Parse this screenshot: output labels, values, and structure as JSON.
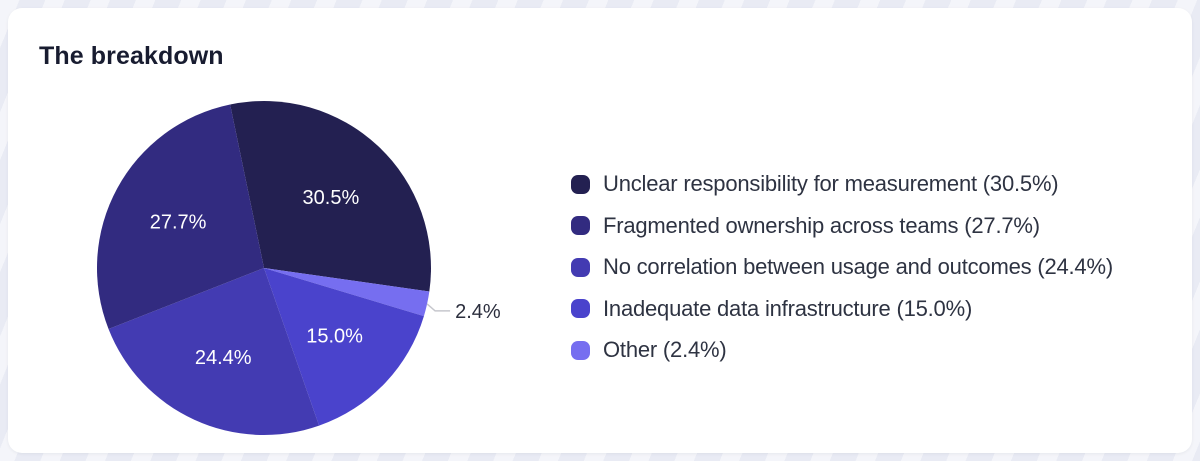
{
  "header": {
    "title": "The breakdown"
  },
  "colors": {
    "page_background": "#e9ebf4",
    "card_background": "#ffffff",
    "title_text": "#181c30",
    "legend_text": "#2e3342"
  },
  "chart_data": {
    "type": "pie",
    "title": "The breakdown",
    "values_unit": "percent",
    "segments": [
      {
        "label": "Unclear responsibility for measurement",
        "value": 30.5,
        "display": "30.5%",
        "color": "#232051"
      },
      {
        "label": "Fragmented ownership across teams",
        "value": 27.7,
        "display": "27.7%",
        "color": "#322b80"
      },
      {
        "label": "No correlation between usage and outcomes",
        "value": 24.4,
        "display": "24.4%",
        "color": "#433bb2"
      },
      {
        "label": "Inadequate data infrastructure",
        "value": 15.0,
        "display": "15.0%",
        "color": "#4a43cc"
      },
      {
        "label": "Other",
        "value": 2.4,
        "display": "2.4%",
        "color": "#766ef0"
      }
    ],
    "legend": {
      "position": "right",
      "entry_format": "label (display)"
    },
    "layout": {
      "start_angle_deg": -11.7,
      "clockwise_order": [
        0,
        4,
        3,
        2,
        1
      ],
      "label_radius_ratio": 0.585,
      "outside_label_indices": [
        4
      ],
      "inside_label_color": "#ffffff",
      "outside_label_color": "#2b2e3d",
      "callout_line_color": "#c6c7cd"
    }
  }
}
